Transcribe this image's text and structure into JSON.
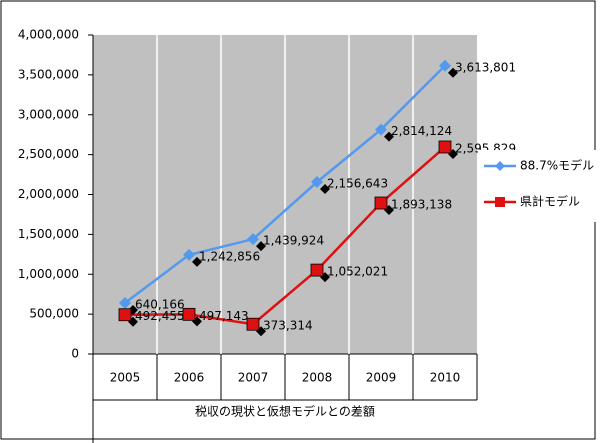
{
  "chart_data": {
    "type": "line",
    "x_label": "税収の現状と仮想モデルとの差額",
    "categories": [
      "2005",
      "2006",
      "2007",
      "2008",
      "2009",
      "2010"
    ],
    "series": [
      {
        "name": "88.7%モデル",
        "color": "#5599ee",
        "marker": "diamond",
        "values": [
          640166,
          1242856,
          1439924,
          2156643,
          2814124,
          3613801
        ],
        "value_labels": [
          "640,166",
          "1,242,856",
          "1,439,924",
          "2,156,643",
          "2,814,124",
          "3,613,801"
        ]
      },
      {
        "name": "県計モデル",
        "color": "#dd1111",
        "marker": "square",
        "values": [
          492455,
          497143,
          373314,
          1052021,
          1893138,
          2595829
        ],
        "value_labels": [
          "492,455",
          "497,143",
          "373,314",
          "1,052,021",
          "1,893,138",
          "2,595,829"
        ]
      }
    ],
    "ylim": [
      0,
      4000000
    ],
    "yticks": [
      0,
      {
        "value": 500000,
        "label": "500,000"
      },
      {
        "value": 1000000,
        "label": "1,000,000"
      },
      {
        "value": 1500000,
        "label": "1,500,000"
      },
      {
        "value": 2000000,
        "label": "2,000,000"
      },
      {
        "value": 2500000,
        "label": "2,500,000"
      },
      {
        "value": 3000000,
        "label": "3,000,000"
      },
      {
        "value": 3500000,
        "label": "3,500,000"
      },
      {
        "value": 4000000,
        "label": "4,000,000"
      }
    ],
    "legend": "right"
  }
}
